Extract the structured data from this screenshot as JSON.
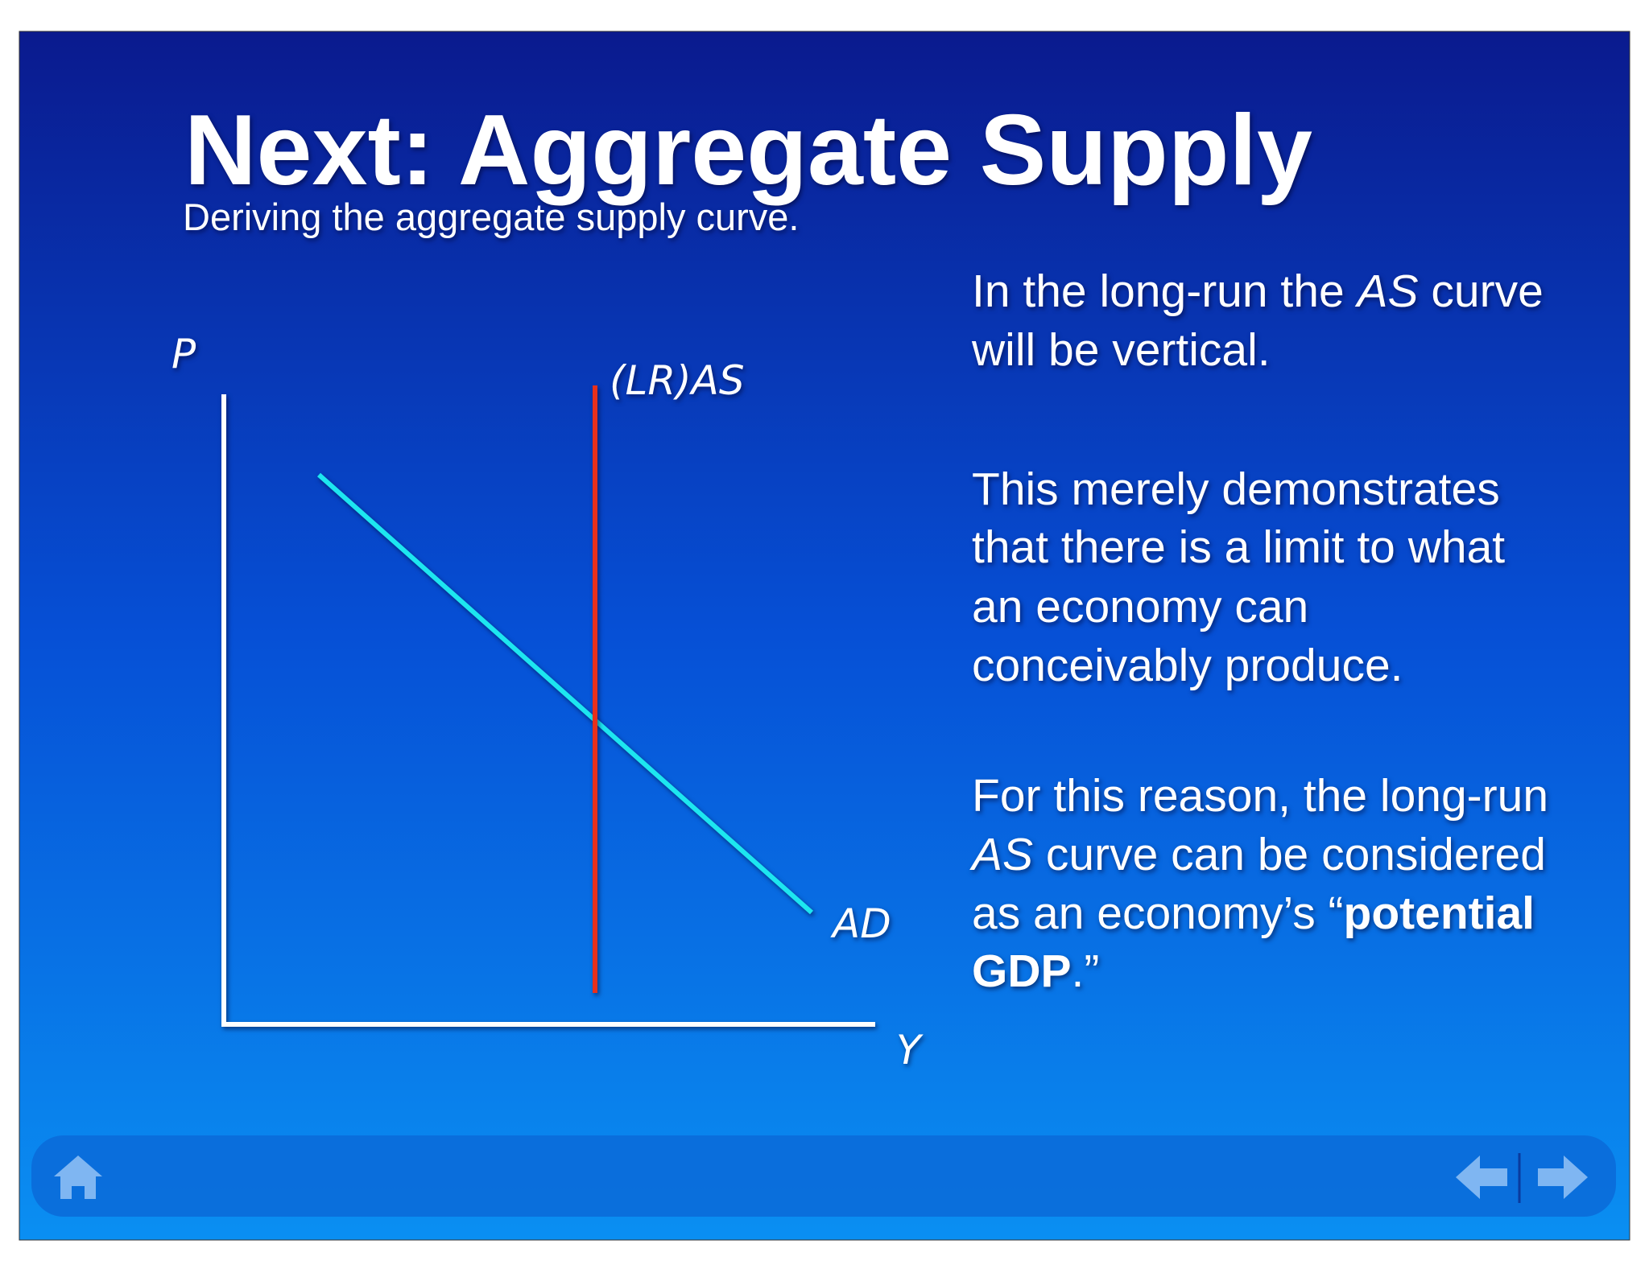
{
  "header": {
    "title": "Next: Aggregate Supply",
    "subtitle": "Deriving the aggregate supply curve."
  },
  "diagram": {
    "y_axis_label": "P",
    "x_axis_label": "Y",
    "curves": [
      {
        "label": "(LR)AS"
      },
      {
        "label": "AD"
      }
    ]
  },
  "paragraphs": [
    [
      [
        "In the long-run the ",
        "AS",
        " curve"
      ],
      [
        "will be vertical."
      ]
    ],
    [
      [
        "This merely demonstrates"
      ],
      [
        "that there is a limit to what"
      ],
      [
        "an economy can"
      ],
      [
        "conceivably produce."
      ]
    ],
    [
      [
        "For this reason, the long-run"
      ],
      [
        "AS",
        " curve can be considered"
      ],
      [
        "as an economy’s “",
        "potential"
      ],
      [
        "GDP",
        ".”"
      ]
    ]
  ]
}
